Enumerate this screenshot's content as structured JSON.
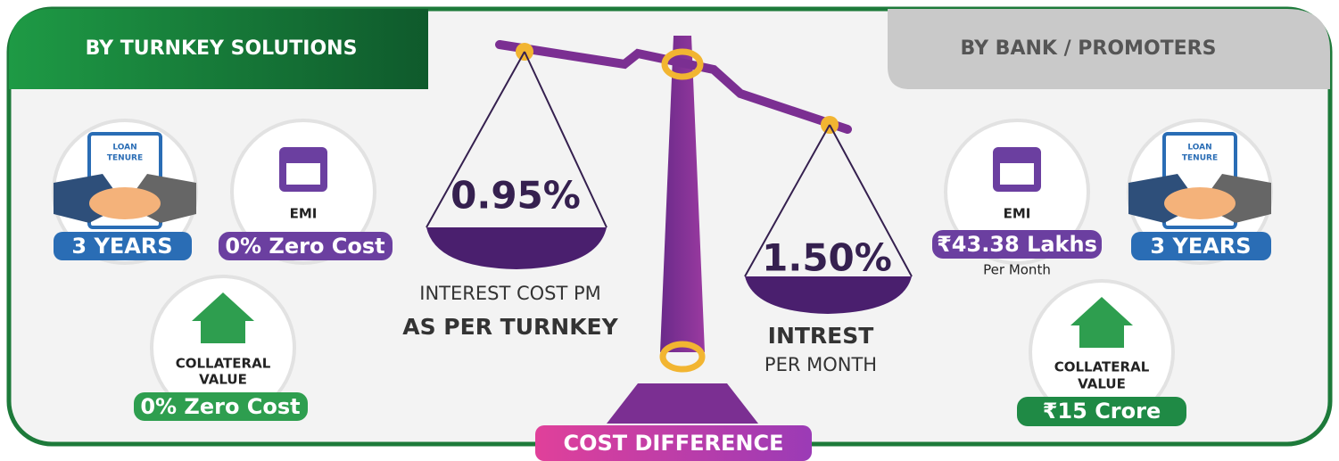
{
  "left_panel": {
    "title": "BY TURNKEY SOLUTIONS",
    "loan_tenure": {
      "icon_text": [
        "LOAN",
        "TENURE"
      ],
      "badge": "3 YEARS"
    },
    "emi": {
      "label": "EMI",
      "badge": "0% Zero Cost"
    },
    "collateral": {
      "label": [
        "COLLATERAL",
        "VALUE"
      ],
      "badge": "0% Zero Cost"
    }
  },
  "right_panel": {
    "title": "BY BANK / PROMOTERS",
    "emi": {
      "label": "EMI",
      "badge": "₹43.38 Lakhs",
      "note": "Per Month"
    },
    "loan_tenure": {
      "icon_text": [
        "LOAN",
        "TENURE"
      ],
      "badge": "3 YEARS"
    },
    "collateral": {
      "label": [
        "COLLATERAL",
        "VALUE"
      ],
      "badge": "₹15 Crore"
    }
  },
  "scale": {
    "left_pan": "0.95%",
    "left_caption": [
      "INTEREST COST PM",
      "AS PER TURNKEY"
    ],
    "right_pan": "1.50%",
    "right_caption": [
      "INTREST",
      "PER MONTH"
    ]
  },
  "footer": {
    "label": "COST DIFFERENCE"
  }
}
